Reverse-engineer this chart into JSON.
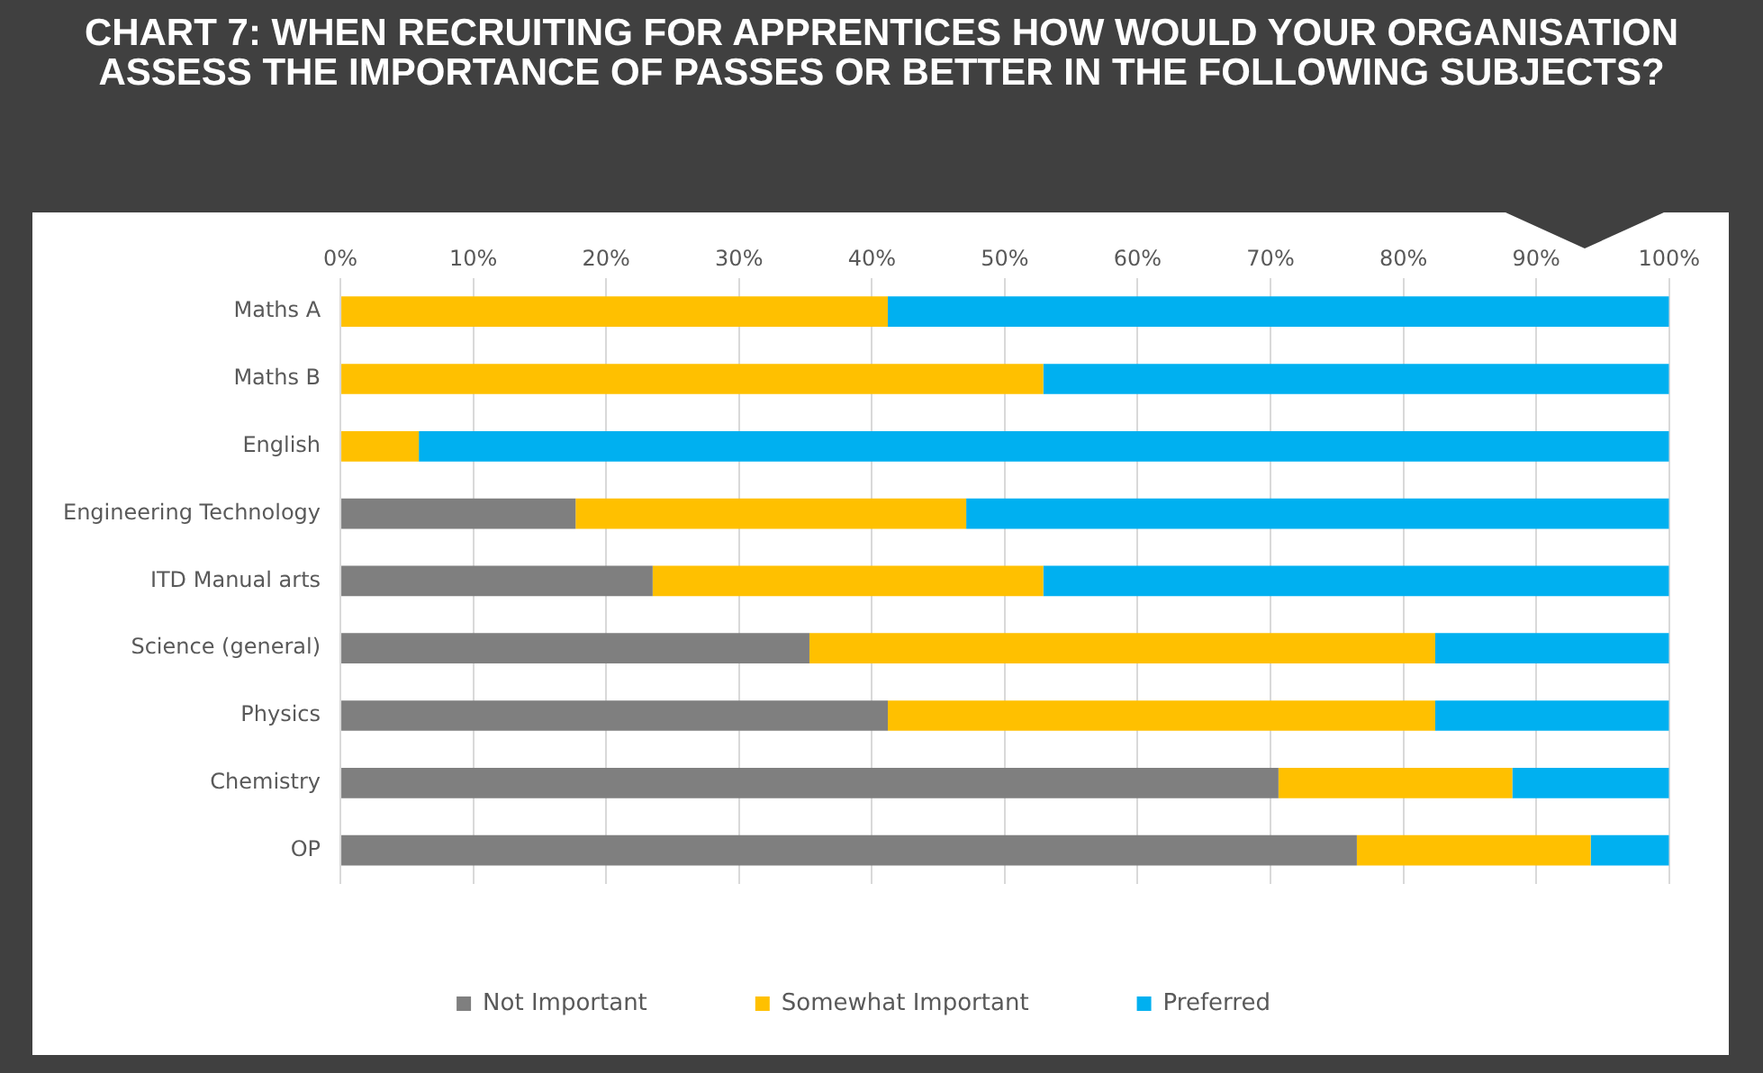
{
  "chart_data": {
    "type": "bar",
    "title": "CHART 7: WHEN RECRUITING FOR APPRENTICES HOW WOULD YOUR ORGANISATION ASSESS THE IMPORTANCE OF PASSES OR BETTER IN THE FOLLOWING SUBJECTS?",
    "orientation": "horizontal",
    "stacked": true,
    "categories": [
      "Maths A",
      "Maths B",
      "English",
      "Engineering Technology",
      "ITD Manual arts",
      "Science (general)",
      "Physics",
      "Chemistry",
      "OP"
    ],
    "series": [
      {
        "name": "Not Important",
        "color": "#7f7f7f",
        "values": [
          0,
          0,
          0,
          17.7,
          23.5,
          35.3,
          41.2,
          70.6,
          76.5
        ]
      },
      {
        "name": "Somewhat Important",
        "color": "#ffc000",
        "values": [
          41.2,
          52.9,
          5.9,
          29.4,
          29.4,
          47.1,
          41.2,
          17.6,
          17.6
        ]
      },
      {
        "name": "Preferred",
        "color": "#00b0f0",
        "values": [
          58.8,
          47.1,
          94.1,
          52.9,
          47.1,
          17.6,
          17.6,
          11.8,
          5.9
        ]
      }
    ],
    "xlim": [
      0,
      100
    ],
    "xticks": [
      {
        "value": 0,
        "label": "0%"
      },
      {
        "value": 10,
        "label": "10%"
      },
      {
        "value": 20,
        "label": "20%"
      },
      {
        "value": 30,
        "label": "30%"
      },
      {
        "value": 40,
        "label": "40%"
      },
      {
        "value": 50,
        "label": "50%"
      },
      {
        "value": 60,
        "label": "60%"
      },
      {
        "value": 70,
        "label": "70%"
      },
      {
        "value": 80,
        "label": "80%"
      },
      {
        "value": 90,
        "label": "90%"
      },
      {
        "value": 100,
        "label": "100%"
      }
    ],
    "grid": "x",
    "legend": "bottom"
  }
}
